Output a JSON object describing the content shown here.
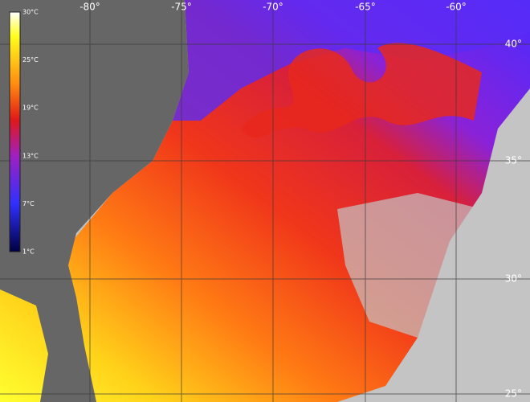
{
  "map": {
    "longitude_labels": [
      "-80°",
      "-75°",
      "-70°",
      "-65°",
      "-60°"
    ],
    "latitude_labels": [
      "40°",
      "35°",
      "30°",
      "25°"
    ]
  },
  "legend": {
    "labels": [
      "30°C",
      "25°C",
      "19°C",
      "13°C",
      "7°C",
      "1°C"
    ]
  }
}
